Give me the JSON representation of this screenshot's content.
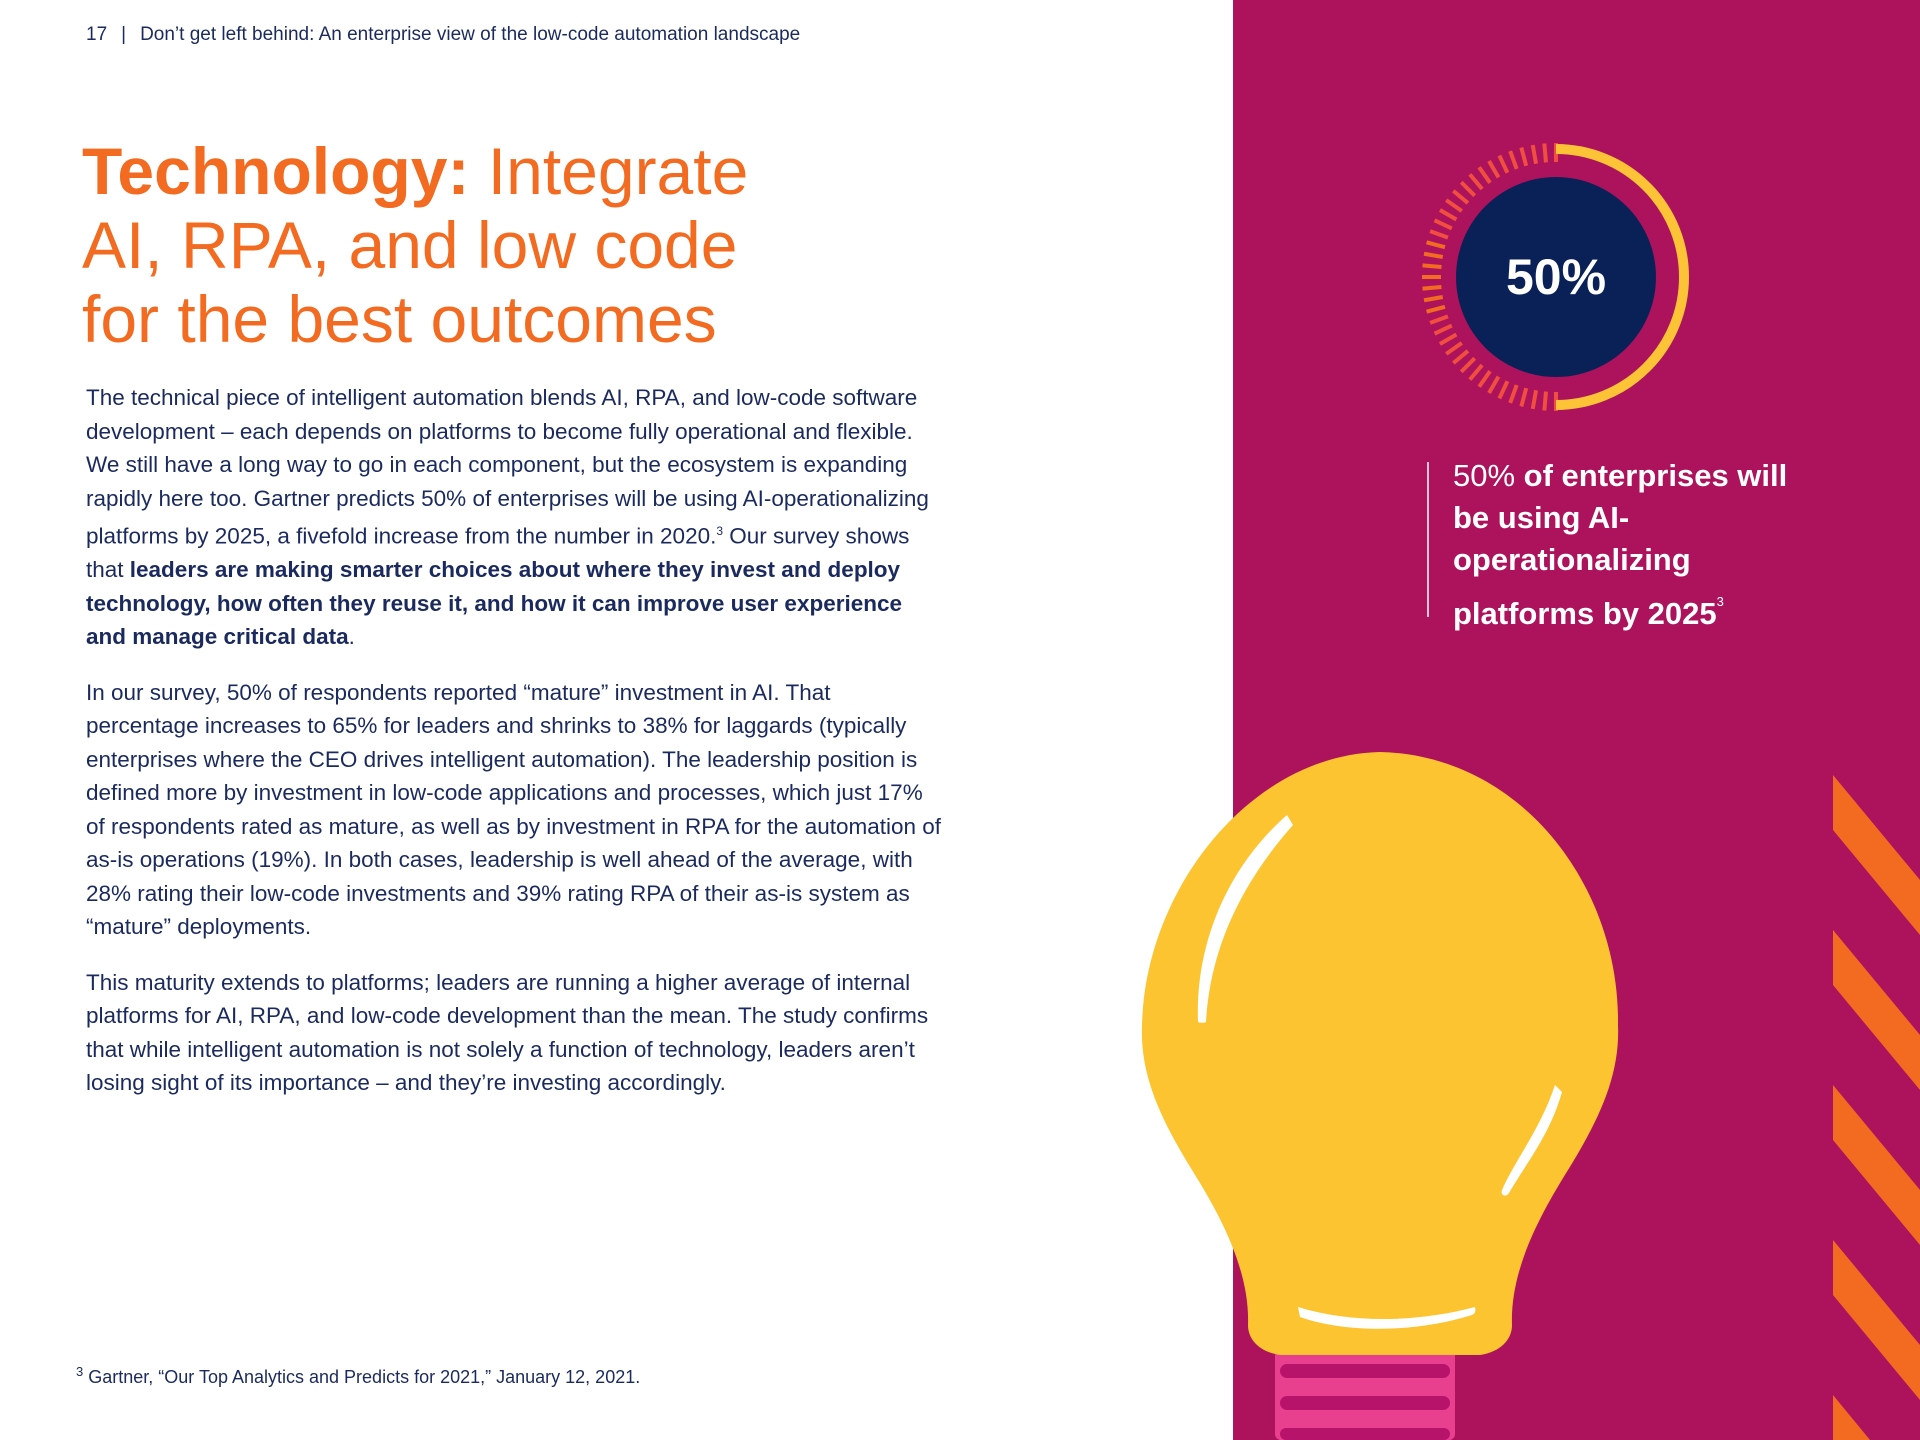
{
  "header": {
    "page_number": "17",
    "separator": "|",
    "doc_title": "Don’t get left behind: An enterprise view of the low-code automation landscape"
  },
  "title": {
    "bold_part": "Technology:",
    "line1_rest": " Integrate",
    "line2": "AI, RPA, and low code",
    "line3": "for the best outcomes"
  },
  "paragraph1": {
    "text": "The technical piece of intelligent automation blends AI, RPA, and low-code software development – each depends on platforms to become fully operational and flexible. We still have a long way to go in each component, but the ecosystem is expanding rapidly here too. Gartner predicts 50% of enterprises will be using AI-operationalizing platforms by 2025, a fivefold increase from the number in 2020.",
    "footnote_ref": "3",
    "lead_in": " Our survey shows that ",
    "bold": "leaders are making smarter choices about where they invest and deploy technology, how often they reuse it, and how it can improve user experience and manage critical data",
    "end": "."
  },
  "paragraph2": "In our survey, 50% of respondents reported “mature” investment in AI. That percentage increases to 65% for leaders and shrinks to 38% for laggards (typically enterprises where the CEO drives intelligent automation). The leadership position is defined more by investment in low-code applications and processes, which just 17% of respondents rated as mature, as well as by investment in RPA for the automation of as-is operations (19%). In both cases, leadership is well ahead of the average, with 28% rating their low-code investments and 39% rating RPA of their as-is system as “mature” deployments.",
  "paragraph3": "This maturity extends to platforms; leaders are running a higher average of internal platforms for AI, RPA, and low-code development than the mean. The study confirms that while intelligent automation is not solely a function of technology, leaders aren’t losing sight of its importance – and they’re investing accordingly.",
  "footnote": {
    "number": "3",
    "text": "Gartner, “Our Top Analytics and Predicts for 2021,” January 12, 2021."
  },
  "stat": {
    "value": "50%",
    "fraction": 0.5,
    "caption_plain": "50% ",
    "caption_bold": "of enterprises will be using AI-operationalizing platforms by 2025",
    "caption_sup": "3"
  },
  "colors": {
    "accent_orange": "#f26b21",
    "navy": "#1b2a5e",
    "panel_magenta": "#ad135d",
    "ring_yellow": "#fbc335",
    "circle_navy": "#0a2158",
    "bulb_yellow": "#fdc431",
    "base_pink": "#e93f8f"
  }
}
